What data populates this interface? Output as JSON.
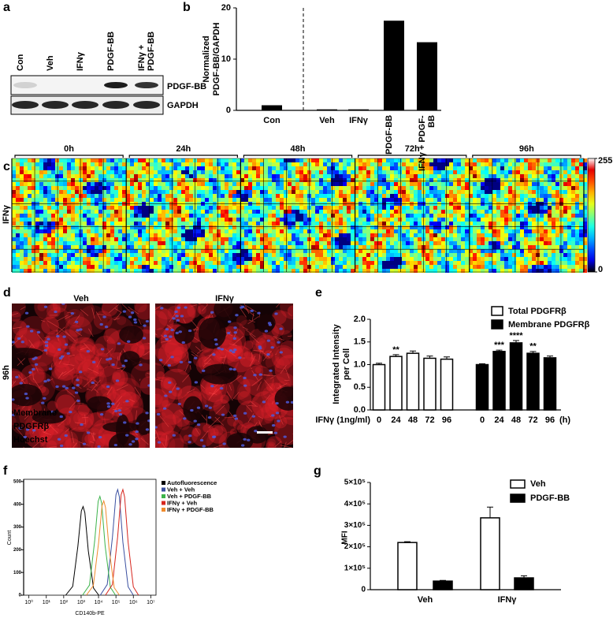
{
  "blot": {
    "label": "a",
    "lanes": [
      "Con",
      "Veh",
      "IFNγ",
      "PDGF-BB",
      "IFNγ + PDGF-BB"
    ],
    "bands": [
      "PDGF-BB",
      "GAPDH"
    ]
  },
  "heatmap": {
    "label": "c",
    "times": [
      "0h",
      "24h",
      "48h",
      "72h",
      "96h"
    ],
    "row_label": "IFNγ",
    "colorbar": {
      "max": 255,
      "min": 0
    }
  },
  "micrograph": {
    "label": "d",
    "panels": [
      "Veh",
      "IFNγ"
    ],
    "row_label": "96h",
    "stain_labels": [
      "Membrane",
      "PDGFRβ",
      "Hoechst"
    ]
  },
  "chart_data": [
    {
      "type": "bar",
      "label": "b",
      "ylabel": [
        "Normalized",
        "PDGF-BB/GAPDH"
      ],
      "categories": [
        "Con",
        "Veh",
        "IFNγ",
        "PDGF-BB",
        "IFNγ + PDGF-BB"
      ],
      "values": [
        1.0,
        0.2,
        0.2,
        17.5,
        13.3
      ],
      "color": "#000000",
      "ylim": [
        0,
        20
      ],
      "yticks": [
        0,
        10,
        20
      ]
    },
    {
      "type": "bar",
      "label": "e",
      "ylabel": [
        "Integrated Intensity",
        "per Cell"
      ],
      "xlabel": "IFNγ (1ng/ml)",
      "xunit": "(h)",
      "categories": [
        "0",
        "24",
        "48",
        "72",
        "96"
      ],
      "series": [
        {
          "name": "Total PDGFRβ",
          "color": "#ffffff",
          "values": [
            1.0,
            1.18,
            1.25,
            1.14,
            1.12
          ],
          "errors": [
            0.03,
            0.04,
            0.05,
            0.05,
            0.05
          ],
          "stars": [
            null,
            "**",
            null,
            null,
            null
          ]
        },
        {
          "name": "Membrane PDGFRβ",
          "color": "#000000",
          "values": [
            1.0,
            1.29,
            1.48,
            1.25,
            1.15
          ],
          "errors": [
            0.02,
            0.03,
            0.05,
            0.04,
            0.04
          ],
          "stars": [
            null,
            "***",
            "****",
            "**",
            null
          ]
        }
      ],
      "ylim": [
        0,
        2.0
      ],
      "yticks": [
        {
          "value": 0,
          "label": "0.0"
        },
        0.5,
        {
          "value": 1,
          "label": "1.0"
        },
        1.5,
        {
          "value": 2,
          "label": "2.0"
        }
      ]
    },
    {
      "type": "line",
      "label": "f",
      "ylabel": "Count",
      "xlabel": "CD140b-PE",
      "xlog": true,
      "series": [
        {
          "name": "Autofluorescence",
          "color": "#000000",
          "x": [
            130,
            330,
            650,
            1030,
            1300,
            1640,
            2590,
            5180,
            10300
          ],
          "values": [
            0,
            39,
            215,
            371,
            390,
            363,
            195,
            31,
            0
          ]
        },
        {
          "name": "Veh + Veh",
          "color": "#3a4fa0",
          "x": [
            12600,
            31600,
            63100,
            100000,
            126000,
            158000,
            251000,
            501000,
            1000000
          ],
          "values": [
            0,
            47,
            256,
            442,
            465,
            432,
            233,
            37,
            0
          ]
        },
        {
          "name": "Veh + PDGF-BB",
          "color": "#3bb34a",
          "x": [
            1200,
            3010,
            6010,
            9530,
            12000,
            15100,
            23900,
            47800,
            95300
          ],
          "values": [
            0,
            44,
            239,
            413,
            435,
            405,
            218,
            35,
            0
          ]
        },
        {
          "name": "IFNγ + Veh",
          "color": "#d7261e",
          "x": [
            25000,
            62800,
            125000,
            198000,
            250000,
            315000,
            500000,
            998000,
            1990000
          ],
          "values": [
            0,
            47,
            256,
            442,
            465,
            432,
            233,
            37,
            0
          ]
        },
        {
          "name": "IFNγ + PDGF-BB",
          "color": "#f08a2c",
          "x": [
            2000,
            5020,
            10000,
            15900,
            20000,
            25200,
            39900,
            79600,
            159000
          ],
          "values": [
            0,
            42,
            228,
            394,
            415,
            386,
            208,
            33,
            0
          ]
        }
      ],
      "xlim": [
        0.5,
        20000000
      ],
      "xticks": [
        {
          "value": 1,
          "label": "10⁰"
        },
        {
          "value": 10,
          "label": "10¹"
        },
        {
          "value": 100,
          "label": "10²"
        },
        {
          "value": 1000,
          "label": "10³"
        },
        {
          "value": 10000,
          "label": "10⁴"
        },
        {
          "value": 100000,
          "label": "10⁵"
        },
        {
          "value": 1000000,
          "label": "10⁶"
        },
        {
          "value": 10000000,
          "label": "10⁷"
        }
      ],
      "ylim": [
        0,
        510
      ],
      "yticks": [
        0,
        100,
        200,
        300,
        400,
        500
      ]
    },
    {
      "type": "bar",
      "label": "g",
      "ylabel": "MFI",
      "categories": [
        "Veh",
        "IFNγ"
      ],
      "series": [
        {
          "name": "Veh",
          "color": "#ffffff",
          "values": [
            220000,
            335000
          ],
          "errors": [
            4000,
            50000
          ]
        },
        {
          "name": "PDGF-BB",
          "color": "#000000",
          "values": [
            40000,
            55000
          ],
          "errors": [
            3000,
            10000
          ]
        }
      ],
      "ylim": [
        0,
        500000
      ],
      "yticks": [
        0,
        {
          "value": 100000,
          "label": "1×10⁵"
        },
        {
          "value": 200000,
          "label": "2×10⁵"
        },
        {
          "value": 300000,
          "label": "3×10⁵"
        },
        {
          "value": 400000,
          "label": "4×10⁵"
        },
        {
          "value": 500000,
          "label": "5×10⁵"
        }
      ]
    }
  ]
}
